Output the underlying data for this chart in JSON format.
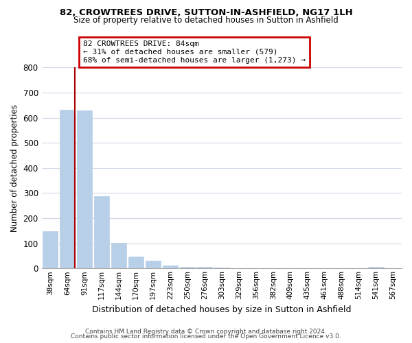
{
  "title": "82, CROWTREES DRIVE, SUTTON-IN-ASHFIELD, NG17 1LH",
  "subtitle": "Size of property relative to detached houses in Sutton in Ashfield",
  "xlabel": "Distribution of detached houses by size in Sutton in Ashfield",
  "ylabel": "Number of detached properties",
  "bar_labels": [
    "38sqm",
    "64sqm",
    "91sqm",
    "117sqm",
    "144sqm",
    "170sqm",
    "197sqm",
    "223sqm",
    "250sqm",
    "276sqm",
    "303sqm",
    "329sqm",
    "356sqm",
    "382sqm",
    "409sqm",
    "435sqm",
    "461sqm",
    "488sqm",
    "514sqm",
    "541sqm",
    "567sqm"
  ],
  "bar_values": [
    148,
    632,
    628,
    287,
    101,
    46,
    32,
    13,
    5,
    5,
    3,
    0,
    0,
    0,
    0,
    0,
    0,
    0,
    0,
    5,
    0
  ],
  "bar_color": "#b8cfe8",
  "vline_color": "#aa0000",
  "annotation_text": "82 CROWTREES DRIVE: 84sqm\n← 31% of detached houses are smaller (579)\n68% of semi-detached houses are larger (1,273) →",
  "annotation_box_color": "#ffffff",
  "annotation_box_edge": "#cc0000",
  "ylim": [
    0,
    800
  ],
  "yticks": [
    0,
    100,
    200,
    300,
    400,
    500,
    600,
    700,
    800
  ],
  "footer_line1": "Contains HM Land Registry data © Crown copyright and database right 2024.",
  "footer_line2": "Contains public sector information licensed under the Open Government Licence v3.0.",
  "background_color": "#ffffff",
  "grid_color": "#d0d8e8"
}
